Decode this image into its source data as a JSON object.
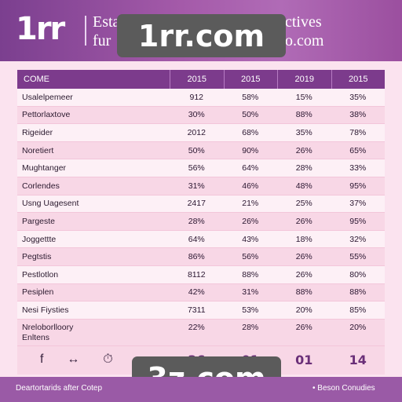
{
  "header": {
    "logo": "1rr",
    "title_line1_left": "Esta",
    "title_line1_right": "ctives",
    "title_line2_left": "fur",
    "title_line2_right": "o.com"
  },
  "watermarks": {
    "top": "1rr.com",
    "bottom": "3z.com"
  },
  "table": {
    "columns": [
      "COME",
      "2015",
      "2015",
      "2019",
      "2015"
    ],
    "rows": [
      {
        "label": "Usalelpemeer",
        "values": [
          "912",
          "58%",
          "15%",
          "35%"
        ]
      },
      {
        "label": "Pettorlaxtove",
        "values": [
          "30%",
          "50%",
          "88%",
          "38%"
        ]
      },
      {
        "label": "Rigeider",
        "values": [
          "2012",
          "68%",
          "35%",
          "78%"
        ]
      },
      {
        "label": "Noretiert",
        "values": [
          "50%",
          "90%",
          "26%",
          "65%"
        ]
      },
      {
        "label": "Mughtanger",
        "values": [
          "56%",
          "64%",
          "28%",
          "33%"
        ]
      },
      {
        "label": "Corlendes",
        "values": [
          "31%",
          "46%",
          "48%",
          "95%"
        ]
      },
      {
        "label": "Usng Uagesent",
        "values": [
          "2417",
          "21%",
          "25%",
          "37%"
        ]
      },
      {
        "label": "Pargeste",
        "values": [
          "28%",
          "26%",
          "26%",
          "95%"
        ]
      },
      {
        "label": "Joggettte",
        "values": [
          "64%",
          "43%",
          "18%",
          "32%"
        ]
      },
      {
        "label": "Pegtstis",
        "values": [
          "86%",
          "56%",
          "26%",
          "55%"
        ]
      },
      {
        "label": "Pestlotlon",
        "values": [
          "8112",
          "88%",
          "26%",
          "80%"
        ]
      },
      {
        "label": "Pesiplen",
        "values": [
          "42%",
          "31%",
          "88%",
          "88%"
        ]
      },
      {
        "label": "Nesi Fiysties",
        "values": [
          "7311",
          "53%",
          "20%",
          "85%"
        ]
      },
      {
        "label": "Nreloborlloory\nEnltens",
        "values": [
          "22%",
          "28%",
          "26%",
          "20%"
        ]
      }
    ],
    "icons": [
      "facebook-icon",
      "arrows-icon",
      "timer-icon",
      "mail-icon"
    ],
    "icon_glyphs": [
      "f",
      "↔",
      "⏱",
      "✉"
    ],
    "totals": [
      "36",
      "01",
      "01",
      "14"
    ]
  },
  "footer": {
    "left": "Deartortarids after Cotep",
    "right": "• Beson Conudies"
  }
}
